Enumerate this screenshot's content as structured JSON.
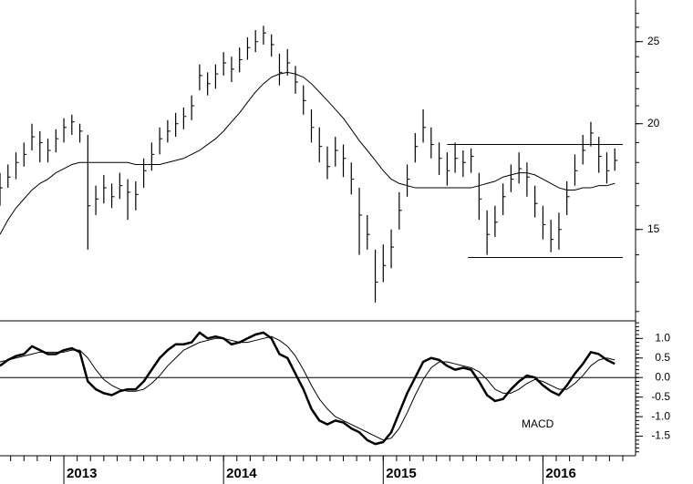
{
  "chart_data": [
    {
      "type": "ohlc",
      "log_scale": true,
      "color": "#000000",
      "x": [
        2012.6,
        2012.65,
        2012.7,
        2012.75,
        2012.8,
        2012.85,
        2012.9,
        2012.95,
        2013.0,
        2013.05,
        2013.1,
        2013.15,
        2013.2,
        2013.25,
        2013.3,
        2013.35,
        2013.4,
        2013.45,
        2013.5,
        2013.55,
        2013.6,
        2013.65,
        2013.7,
        2013.75,
        2013.8,
        2013.85,
        2013.9,
        2013.95,
        2014.0,
        2014.05,
        2014.1,
        2014.15,
        2014.2,
        2014.25,
        2014.3,
        2014.35,
        2014.4,
        2014.45,
        2014.5,
        2014.55,
        2014.6,
        2014.65,
        2014.7,
        2014.75,
        2014.8,
        2014.85,
        2014.9,
        2014.95,
        2015.0,
        2015.05,
        2015.1,
        2015.15,
        2015.2,
        2015.25,
        2015.3,
        2015.35,
        2015.4,
        2015.45,
        2015.5,
        2015.55,
        2015.6,
        2015.65,
        2015.7,
        2015.75,
        2015.8,
        2015.85,
        2015.9,
        2015.95,
        2016.0,
        2016.05,
        2016.1,
        2016.15,
        2016.2,
        2016.25,
        2016.3,
        2016.35,
        2016.4,
        2016.45
      ],
      "high": [
        17.5,
        17.9,
        18.5,
        19.0,
        20.0,
        19.6,
        19.2,
        19.7,
        20.3,
        20.5,
        20.0,
        19.4,
        16.9,
        17.4,
        17.0,
        17.5,
        17.2,
        17.1,
        18.2,
        19.0,
        19.8,
        20.2,
        20.6,
        20.9,
        21.6,
        23.5,
        23.0,
        23.5,
        24.3,
        24.0,
        24.6,
        25.3,
        25.8,
        26.1,
        25.5,
        24.2,
        24.5,
        23.4,
        22.2,
        20.8,
        19.8,
        18.8,
        19.3,
        18.9,
        18.0,
        16.8,
        15.6,
        14.2,
        14.4,
        15.0,
        16.6,
        17.9,
        19.5,
        20.8,
        19.8,
        19.0,
        18.5,
        19.0,
        18.6,
        18.7,
        17.5,
        15.8,
        16.0,
        17.0,
        17.9,
        18.5,
        18.0,
        16.9,
        16.0,
        15.4,
        15.7,
        17.1,
        18.4,
        19.4,
        20.1,
        19.3,
        18.5,
        18.7
      ],
      "low": [
        16.0,
        16.8,
        17.2,
        17.8,
        18.6,
        18.0,
        18.0,
        18.5,
        19.0,
        19.4,
        19.0,
        14.2,
        15.6,
        16.1,
        15.9,
        16.3,
        15.4,
        15.8,
        16.8,
        17.6,
        18.4,
        19.0,
        19.3,
        19.7,
        20.2,
        21.9,
        21.6,
        22.0,
        22.8,
        22.4,
        23.0,
        23.8,
        24.3,
        24.8,
        24.0,
        22.2,
        22.8,
        21.7,
        20.5,
        19.0,
        18.0,
        17.2,
        17.8,
        17.3,
        16.5,
        14.0,
        14.2,
        12.3,
        13.0,
        13.5,
        15.0,
        16.4,
        18.0,
        19.0,
        18.2,
        17.4,
        16.9,
        17.5,
        17.3,
        17.5,
        15.4,
        14.0,
        14.7,
        15.6,
        16.6,
        17.0,
        16.4,
        15.5,
        14.6,
        14.1,
        14.2,
        15.6,
        16.9,
        17.9,
        18.8,
        17.5,
        17.0,
        17.6
      ],
      "close": [
        16.8,
        17.3,
        18.0,
        18.4,
        19.3,
        19.0,
        18.6,
        19.2,
        19.8,
        20.1,
        19.6,
        16.0,
        16.3,
        16.8,
        16.4,
        16.9,
        16.6,
        16.5,
        17.6,
        18.4,
        19.2,
        19.6,
        20.0,
        20.4,
        21.0,
        22.8,
        22.3,
        22.9,
        23.6,
        23.2,
        23.8,
        24.6,
        25.0,
        25.6,
        24.8,
        23.0,
        23.6,
        22.4,
        21.3,
        19.8,
        18.8,
        17.8,
        18.6,
        18.2,
        17.2,
        15.6,
        14.8,
        13.0,
        13.6,
        14.3,
        15.8,
        17.2,
        18.8,
        19.8,
        18.9,
        18.2,
        17.6,
        18.2,
        18.0,
        18.3,
        16.3,
        14.8,
        15.3,
        16.4,
        17.2,
        17.7,
        17.3,
        16.1,
        15.2,
        14.6,
        15.0,
        16.4,
        17.6,
        18.6,
        19.5,
        18.3,
        17.6,
        18.1
      ],
      "moving_average": [
        14.8,
        15.4,
        15.9,
        16.3,
        16.7,
        17.0,
        17.2,
        17.5,
        17.7,
        17.9,
        18.0,
        18.0,
        18.0,
        18.0,
        18.0,
        18.0,
        18.0,
        17.9,
        17.9,
        17.9,
        17.9,
        18.0,
        18.1,
        18.2,
        18.4,
        18.6,
        18.9,
        19.2,
        19.6,
        20.1,
        20.6,
        21.2,
        21.8,
        22.3,
        22.7,
        22.9,
        23.0,
        22.9,
        22.7,
        22.3,
        21.8,
        21.3,
        20.8,
        20.3,
        19.7,
        19.1,
        18.6,
        18.1,
        17.6,
        17.2,
        17.0,
        16.9,
        16.8,
        16.8,
        16.8,
        16.8,
        16.8,
        16.8,
        16.8,
        16.8,
        16.9,
        17.0,
        17.1,
        17.3,
        17.4,
        17.5,
        17.5,
        17.4,
        17.2,
        17.0,
        16.8,
        16.7,
        16.7,
        16.8,
        16.8,
        16.9,
        16.9,
        17.0
      ],
      "levels": [
        {
          "value": 18.9,
          "x": [
            2015.4,
            2016.5
          ]
        },
        {
          "value": 13.9,
          "x": [
            2015.53,
            2016.5
          ]
        }
      ],
      "xlim": [
        2012.6,
        2016.58
      ],
      "ylim": [
        11.7,
        28
      ],
      "yticks": [
        15,
        20,
        25
      ]
    },
    {
      "type": "line",
      "title": "MACD",
      "x": [
        2012.6,
        2012.65,
        2012.7,
        2012.75,
        2012.8,
        2012.85,
        2012.9,
        2012.95,
        2013.0,
        2013.05,
        2013.1,
        2013.15,
        2013.2,
        2013.25,
        2013.3,
        2013.35,
        2013.4,
        2013.45,
        2013.5,
        2013.55,
        2013.6,
        2013.65,
        2013.7,
        2013.75,
        2013.8,
        2013.85,
        2013.9,
        2013.95,
        2014.0,
        2014.05,
        2014.1,
        2014.15,
        2014.2,
        2014.25,
        2014.3,
        2014.35,
        2014.4,
        2014.45,
        2014.5,
        2014.55,
        2014.6,
        2014.65,
        2014.7,
        2014.75,
        2014.8,
        2014.85,
        2014.9,
        2014.95,
        2015.0,
        2015.05,
        2015.1,
        2015.15,
        2015.2,
        2015.25,
        2015.3,
        2015.35,
        2015.4,
        2015.45,
        2015.5,
        2015.55,
        2015.6,
        2015.65,
        2015.7,
        2015.75,
        2015.8,
        2015.85,
        2015.9,
        2015.95,
        2016.0,
        2016.05,
        2016.1,
        2016.15,
        2016.2,
        2016.25,
        2016.3,
        2016.35,
        2016.4,
        2016.45
      ],
      "series": [
        {
          "color": "#000000",
          "width": 2.5,
          "values": [
            0.3,
            0.45,
            0.55,
            0.6,
            0.8,
            0.7,
            0.6,
            0.6,
            0.7,
            0.75,
            0.65,
            -0.1,
            -0.3,
            -0.4,
            -0.45,
            -0.35,
            -0.3,
            -0.3,
            -0.1,
            0.2,
            0.5,
            0.7,
            0.85,
            0.85,
            0.9,
            1.15,
            1.0,
            1.05,
            1.0,
            0.85,
            0.9,
            1.0,
            1.1,
            1.15,
            1.0,
            0.6,
            0.5,
            0.1,
            -0.3,
            -0.8,
            -1.1,
            -1.2,
            -1.1,
            -1.15,
            -1.3,
            -1.4,
            -1.6,
            -1.7,
            -1.65,
            -1.4,
            -0.9,
            -0.4,
            0.0,
            0.4,
            0.5,
            0.45,
            0.3,
            0.2,
            0.25,
            0.2,
            -0.1,
            -0.45,
            -0.6,
            -0.55,
            -0.3,
            -0.1,
            0.05,
            0.0,
            -0.2,
            -0.35,
            -0.45,
            -0.2,
            0.1,
            0.35,
            0.65,
            0.6,
            0.45,
            0.35
          ]
        },
        {
          "color": "#000000",
          "width": 1,
          "values": [
            0.4,
            0.45,
            0.5,
            0.55,
            0.6,
            0.65,
            0.65,
            0.65,
            0.65,
            0.7,
            0.7,
            0.5,
            0.2,
            -0.05,
            -0.2,
            -0.3,
            -0.35,
            -0.35,
            -0.3,
            -0.15,
            0.05,
            0.3,
            0.5,
            0.7,
            0.8,
            0.9,
            0.95,
            1.0,
            1.0,
            0.95,
            0.9,
            0.9,
            0.95,
            1.0,
            1.05,
            0.95,
            0.8,
            0.55,
            0.2,
            -0.2,
            -0.55,
            -0.8,
            -1.0,
            -1.1,
            -1.2,
            -1.3,
            -1.4,
            -1.5,
            -1.6,
            -1.55,
            -1.3,
            -0.9,
            -0.45,
            -0.05,
            0.25,
            0.4,
            0.4,
            0.35,
            0.3,
            0.25,
            0.15,
            -0.05,
            -0.3,
            -0.4,
            -0.4,
            -0.3,
            -0.15,
            -0.05,
            -0.1,
            -0.2,
            -0.3,
            -0.3,
            -0.15,
            0.05,
            0.3,
            0.45,
            0.5,
            0.45
          ]
        }
      ],
      "zero_line": true,
      "xlim": [
        2012.6,
        2016.58
      ],
      "ylim": [
        -2.0,
        1.45
      ],
      "yticks": [
        {
          "value": 1,
          "label": "1.0"
        },
        {
          "value": 0.5,
          "label": "0.5"
        },
        {
          "value": 0,
          "label": "0.0"
        },
        {
          "value": -0.5,
          "label": "-0.5"
        },
        {
          "value": -1,
          "label": "-1.0"
        },
        {
          "value": -1.5,
          "label": "-1.5"
        }
      ],
      "xticks": [
        2013,
        2014,
        2015,
        2016
      ]
    }
  ]
}
